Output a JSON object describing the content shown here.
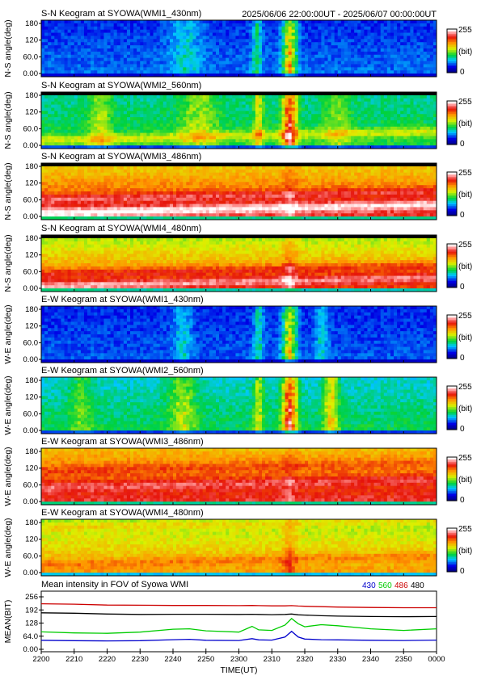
{
  "header": {
    "station_title": "S-N Keogram at SYOWA(WMI1_430nm)",
    "time_range": "2025/06/06 22:00:00UT - 2025/06/07 00:00:00UT"
  },
  "colorbar": {
    "max": "255",
    "unit": "(bit)",
    "min": "0"
  },
  "chart_data": [
    {
      "type": "heatmap",
      "title": "S-N Keogram at SYOWA(WMI1_430nm)",
      "ylabel": "N-S angle(deg)",
      "yticks": [
        "180",
        "120",
        "60.0",
        "0.00"
      ],
      "ylim": [
        0,
        180
      ],
      "xlim": [
        "2200",
        "0000"
      ],
      "baseline": 45,
      "gradient": 8,
      "dark_top": false,
      "peaks": [
        [
          2315.5,
          130,
          1.5
        ],
        [
          2305.5,
          55,
          1.0
        ],
        [
          2244,
          35,
          3.5
        ]
      ],
      "bands": []
    },
    {
      "type": "heatmap",
      "title": "S-N Keogram at SYOWA(WMI2_560nm)",
      "ylabel": "N-S angle(deg)",
      "yticks": [
        "180",
        "120",
        "60.0",
        "0.00"
      ],
      "ylim": [
        0,
        180
      ],
      "xlim": [
        "2200",
        "0000"
      ],
      "baseline": 95,
      "gradient": 10,
      "dark_top": true,
      "peaks": [
        [
          2315.5,
          130,
          1.5
        ],
        [
          2306,
          60,
          1.0
        ],
        [
          2248,
          40,
          4.0
        ],
        [
          2218,
          40,
          2.5
        ],
        [
          2330,
          30,
          3.0
        ]
      ],
      "bands": [
        [
          0.15,
          40
        ]
      ]
    },
    {
      "type": "heatmap",
      "title": "S-N Keogram at SYOWA(WMI3_486nm)",
      "ylabel": "N-S angle(deg)",
      "yticks": [
        "180",
        "120",
        "60.0",
        "0.00"
      ],
      "ylim": [
        0,
        180
      ],
      "xlim": [
        "2200",
        "0000"
      ],
      "baseline": 185,
      "gradient": 35,
      "dark_top": true,
      "peaks": [
        [
          2315.5,
          20,
          1.5
        ]
      ],
      "bands": [
        [
          0.35,
          30
        ],
        [
          0.12,
          50
        ]
      ]
    },
    {
      "type": "heatmap",
      "title": "S-N Keogram at SYOWA(WMI4_480nm)",
      "ylabel": "N-S angle(deg)",
      "yticks": [
        "180",
        "120",
        "60.0",
        "0.00"
      ],
      "ylim": [
        0,
        180
      ],
      "xlim": [
        "2200",
        "0000"
      ],
      "baseline": 165,
      "gradient": 40,
      "dark_top": true,
      "peaks": [
        [
          2315.5,
          30,
          1.5
        ]
      ],
      "bands": [
        [
          0.3,
          30
        ],
        [
          0.1,
          45
        ]
      ]
    },
    {
      "type": "heatmap",
      "title": "E-W Keogram at SYOWA(WMI1_430nm)",
      "ylabel": "W-E angle(deg)",
      "yticks": [
        "180",
        "120",
        "60.0",
        "0.00"
      ],
      "ylim": [
        0,
        180
      ],
      "xlim": [
        "2200",
        "0000"
      ],
      "baseline": 42,
      "gradient": 6,
      "dark_top": false,
      "peaks": [
        [
          2315.5,
          120,
          1.5
        ],
        [
          2306,
          50,
          1.0
        ],
        [
          2243,
          35,
          2.0
        ],
        [
          2325,
          35,
          1.5
        ]
      ],
      "bands": []
    },
    {
      "type": "heatmap",
      "title": "E-W Keogram at SYOWA(WMI2_560nm)",
      "ylabel": "W-E angle(deg)",
      "yticks": [
        "180",
        "120",
        "60.0",
        "0.00"
      ],
      "ylim": [
        0,
        180
      ],
      "xlim": [
        "2200",
        "0000"
      ],
      "baseline": 88,
      "gradient": 12,
      "dark_top": false,
      "peaks": [
        [
          2315.5,
          140,
          1.5
        ],
        [
          2306,
          55,
          1.0
        ],
        [
          2243,
          45,
          3.0
        ],
        [
          2328,
          70,
          1.5
        ],
        [
          2212,
          30,
          2.5
        ]
      ],
      "bands": []
    },
    {
      "type": "heatmap",
      "title": "E-W Keogram at SYOWA(WMI3_486nm)",
      "ylabel": "W-E angle(deg)",
      "yticks": [
        "180",
        "120",
        "60.0",
        "0.00"
      ],
      "ylim": [
        0,
        180
      ],
      "xlim": [
        "2200",
        "0000"
      ],
      "baseline": 190,
      "gradient": 30,
      "dark_top": false,
      "peaks": [
        [
          2315.5,
          15,
          1.5
        ]
      ],
      "bands": [
        [
          0.3,
          25
        ],
        [
          0.6,
          15
        ]
      ]
    },
    {
      "type": "heatmap",
      "title": "E-W Keogram at SYOWA(WMI4_480nm)",
      "ylabel": "W-E angle(deg)",
      "yticks": [
        "180",
        "120",
        "60.0",
        "0.00"
      ],
      "ylim": [
        0,
        180
      ],
      "xlim": [
        "2200",
        "0000"
      ],
      "baseline": 150,
      "gradient": 25,
      "dark_top": false,
      "peaks": [
        [
          2315.5,
          30,
          1.5
        ]
      ],
      "bands": [
        [
          0.2,
          20
        ],
        [
          0.85,
          20
        ]
      ]
    },
    {
      "type": "line",
      "title": "Mean intensity in FOV of Syowa WMI",
      "xlabel": "TIME(UT)",
      "ylabel": "MEAN(BIT)",
      "ylim": [
        0,
        256
      ],
      "yticks": [
        "256",
        "192",
        "128",
        "64.0",
        "0.00"
      ],
      "xticks": [
        "2200",
        "2210",
        "2220",
        "2230",
        "2240",
        "2250",
        "2300",
        "2310",
        "2320",
        "2330",
        "2340",
        "2350",
        "0000"
      ],
      "x": [
        0,
        10,
        20,
        30,
        40,
        45,
        50,
        60,
        64,
        66,
        70,
        74,
        76,
        78,
        80,
        85,
        90,
        100,
        110,
        120
      ],
      "series": [
        {
          "name": "430",
          "color": "#0000cc",
          "values": [
            44,
            42,
            41,
            42,
            47,
            49,
            44,
            43,
            52,
            46,
            45,
            60,
            88,
            60,
            50,
            47,
            46,
            44,
            43,
            45
          ]
        },
        {
          "name": "560",
          "color": "#00cc00",
          "values": [
            85,
            80,
            78,
            84,
            98,
            100,
            90,
            84,
            112,
            95,
            92,
            118,
            150,
            125,
            110,
            120,
            115,
            100,
            92,
            100
          ]
        },
        {
          "name": "486",
          "color": "#cc0000",
          "values": [
            222,
            220,
            216,
            215,
            214,
            214,
            214,
            213,
            214,
            213,
            212,
            212,
            213,
            211,
            210,
            208,
            206,
            204,
            203,
            203
          ]
        },
        {
          "name": "480",
          "color": "#000000",
          "values": [
            178,
            176,
            172,
            170,
            171,
            171,
            171,
            170,
            171,
            170,
            169,
            170,
            172,
            168,
            167,
            164,
            162,
            160,
            159,
            160
          ]
        }
      ]
    }
  ]
}
